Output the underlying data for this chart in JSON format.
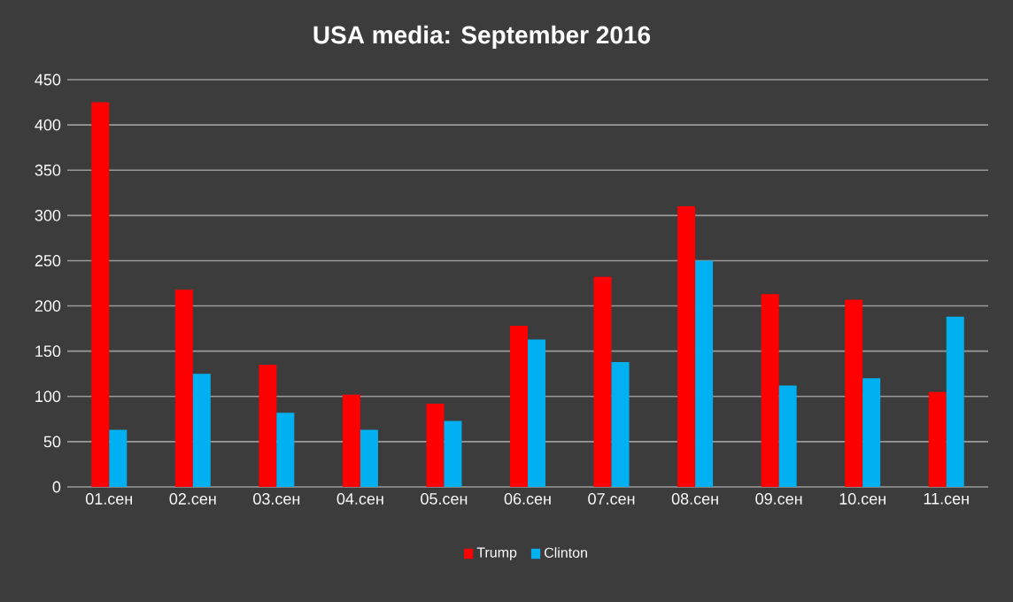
{
  "chart_data": {
    "type": "bar",
    "title": "USA media: September 2016",
    "categories": [
      "01.сен",
      "02.сен",
      "03.сен",
      "04.сен",
      "05.сен",
      "06.сен",
      "07.сен",
      "08.сен",
      "09.сен",
      "10.сен",
      "11.сен"
    ],
    "series": [
      {
        "name": "Trump",
        "color": "#ff0000",
        "values": [
          425,
          218,
          135,
          102,
          92,
          178,
          232,
          310,
          213,
          207,
          105
        ]
      },
      {
        "name": "Clinton",
        "color": "#00b0f0",
        "values": [
          63,
          125,
          82,
          63,
          73,
          163,
          138,
          250,
          112,
          120,
          188
        ]
      }
    ],
    "ylim": [
      0,
      450
    ],
    "yticks": [
      0,
      50,
      100,
      150,
      200,
      250,
      300,
      350,
      400,
      450
    ],
    "grid": "y",
    "legend": "bottom"
  }
}
